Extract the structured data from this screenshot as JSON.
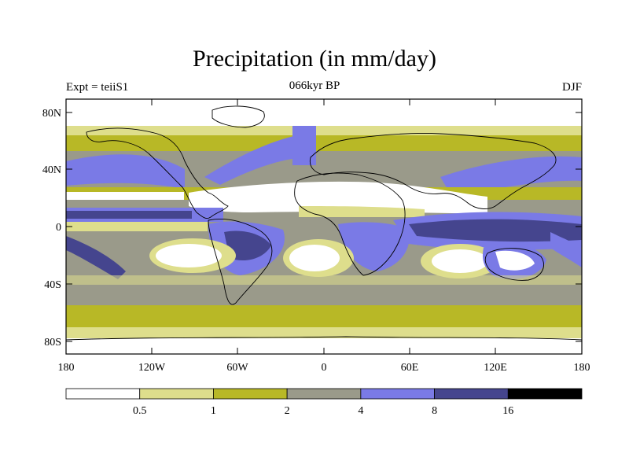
{
  "title": "Precipitation (in mm/day)",
  "subtitle_left": "Expt = teiiS1",
  "subtitle_center": "066kyr BP",
  "subtitle_right": "DJF",
  "axes": {
    "lat_labels": [
      "80N",
      "40N",
      "0",
      "40S",
      "80S"
    ],
    "lon_labels": [
      "180",
      "120W",
      "60W",
      "0",
      "60E",
      "120E",
      "180"
    ]
  },
  "colorbar": {
    "colors": [
      "#ffffff",
      "#dede8c",
      "#b8b826",
      "#9a9a8a",
      "#7a7ae6",
      "#45458e",
      "#000000"
    ],
    "labels": [
      "0.5",
      "1",
      "2",
      "4",
      "8",
      "16"
    ]
  }
}
